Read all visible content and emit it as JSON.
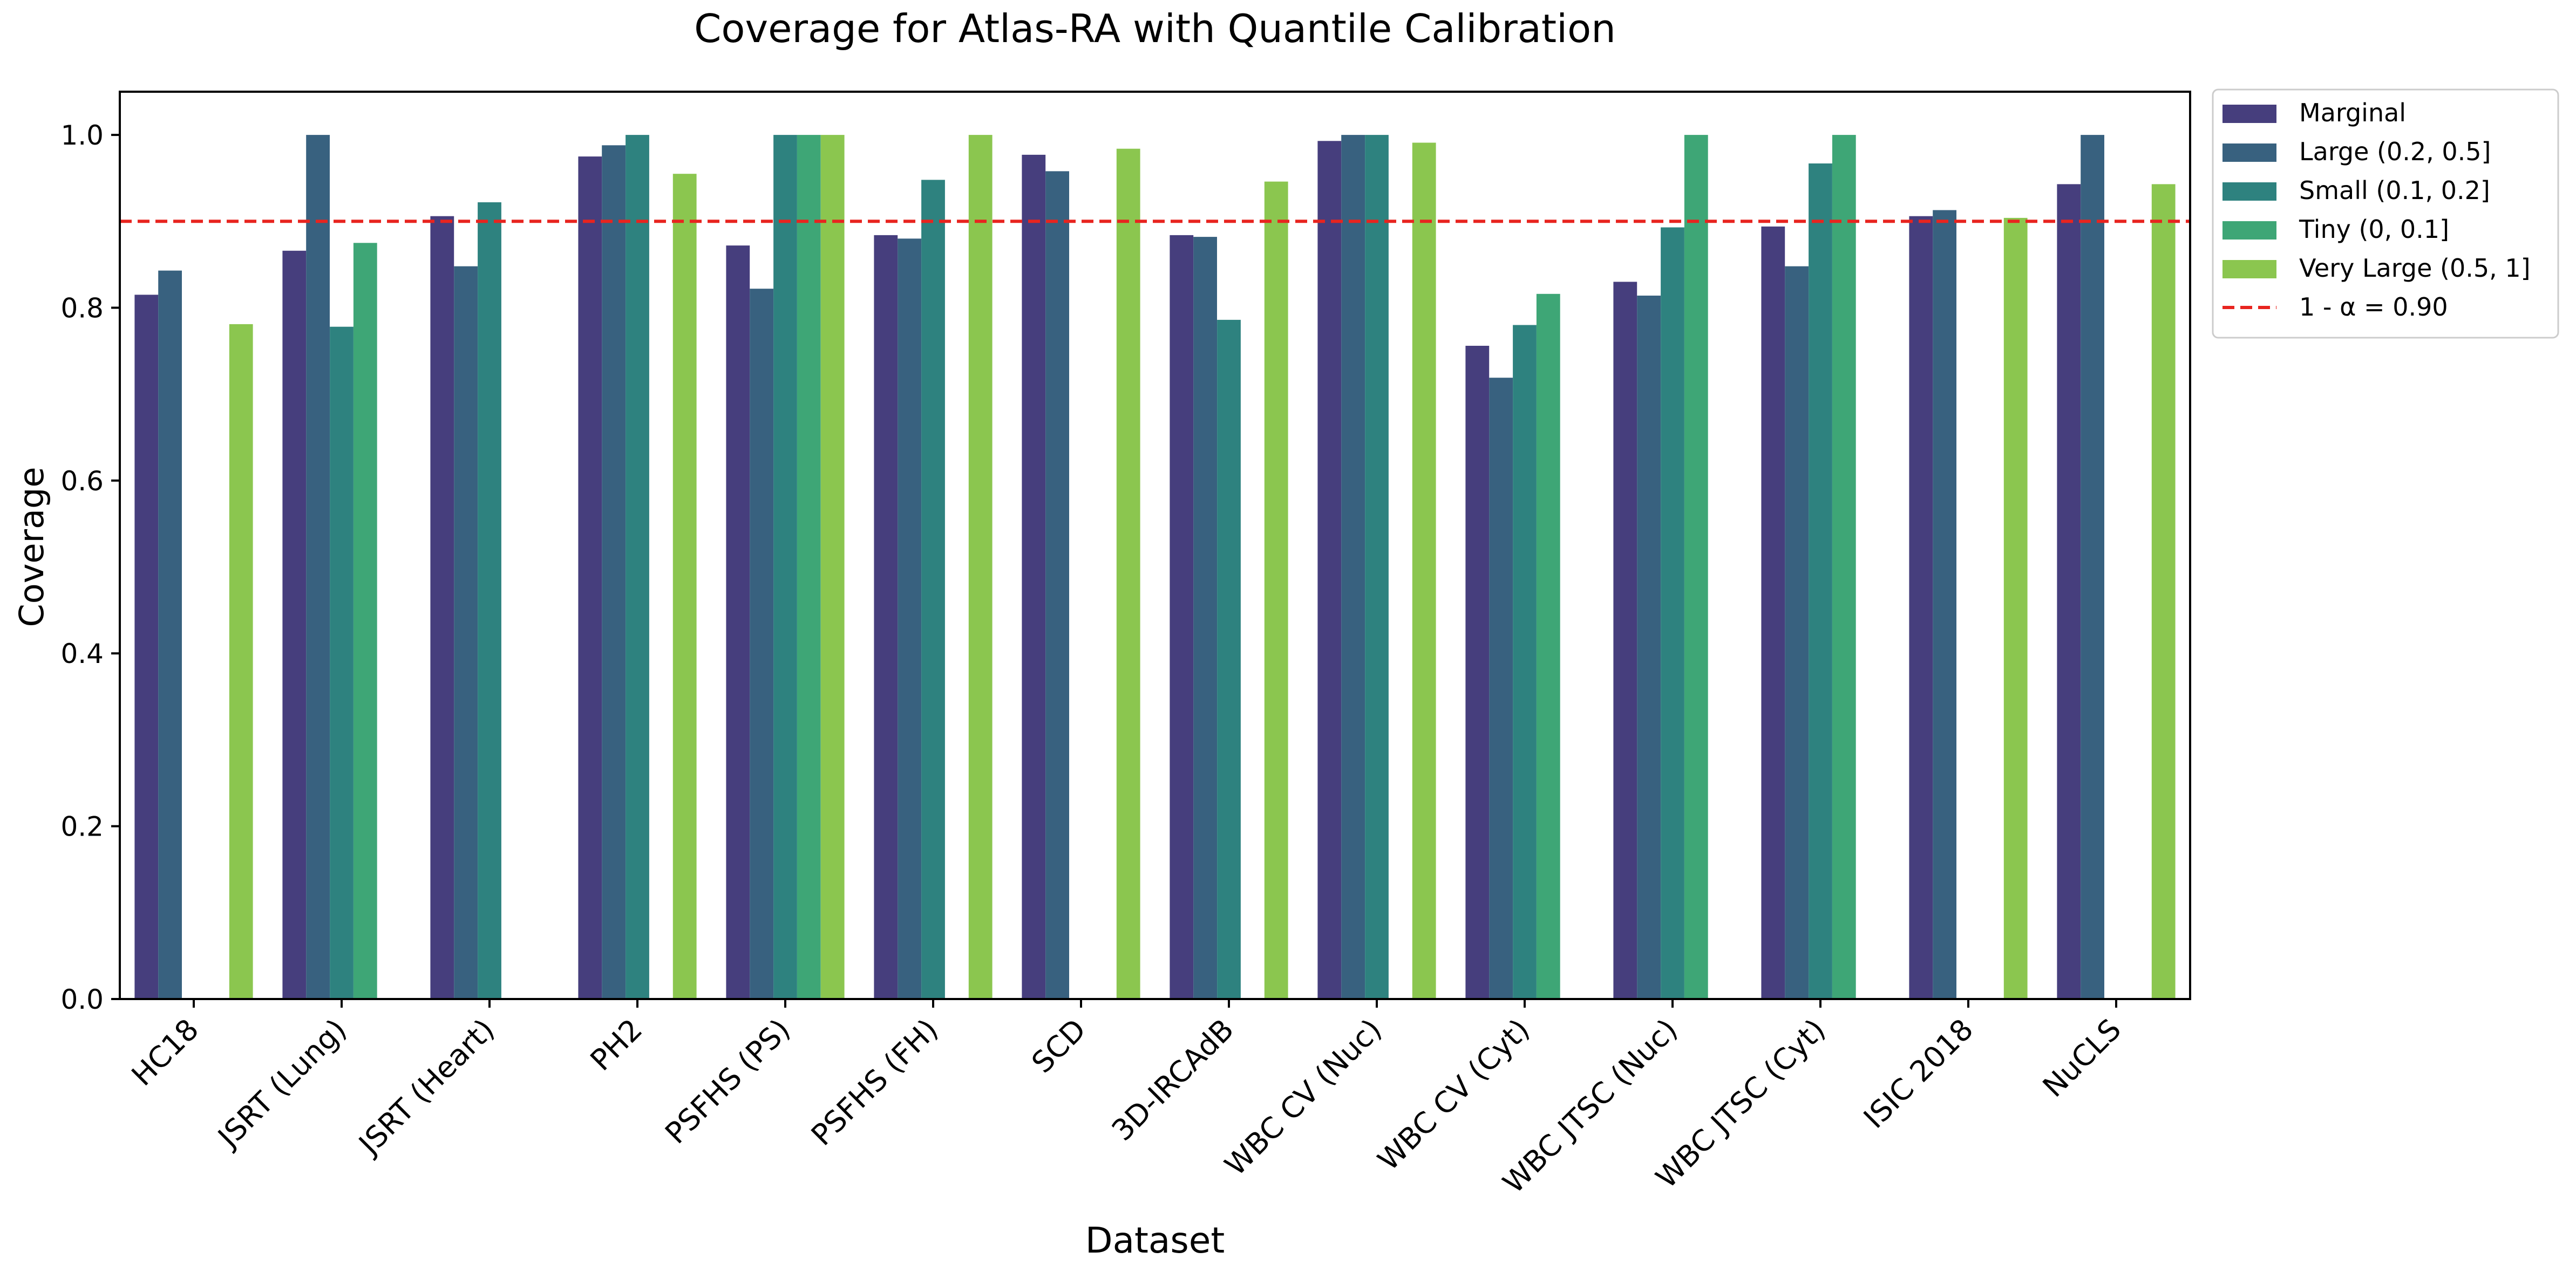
{
  "chart_data": {
    "type": "bar",
    "title": "Coverage for Atlas-RA with Quantile Calibration",
    "xlabel": "Dataset",
    "ylabel": "Coverage",
    "ylim": [
      0,
      1.05
    ],
    "yticks": [
      "0.0",
      "0.2",
      "0.4",
      "0.6",
      "0.8",
      "1.0"
    ],
    "grid": false,
    "legend_position": "outside top-right",
    "categories": [
      "HC18",
      "JSRT (Lung)",
      "JSRT (Heart)",
      "PH2",
      "PSFHS (PS)",
      "PSFHS (FH)",
      "SCD",
      "3D-IRCAdB",
      "WBC CV (Nuc)",
      "WBC CV (Cyt)",
      "WBC JTSC (Nuc)",
      "WBC JTSC (Cyt)",
      "ISIC 2018",
      "NuCLS"
    ],
    "series": [
      {
        "name": "Marginal",
        "color": "#463e7d",
        "values": [
          0.815,
          0.866,
          0.906,
          0.975,
          0.872,
          0.884,
          0.977,
          0.884,
          0.993,
          0.756,
          0.83,
          0.894,
          0.906,
          0.943
        ]
      },
      {
        "name": "Large (0.2, 0.5]",
        "color": "#38617f",
        "values": [
          0.843,
          1.0,
          0.848,
          0.988,
          0.822,
          0.88,
          0.958,
          0.882,
          1.0,
          0.719,
          0.814,
          0.848,
          0.913,
          1.0
        ]
      },
      {
        "name": "Small (0.1, 0.2]",
        "color": "#2e827f",
        "values": [
          null,
          0.778,
          0.922,
          1.0,
          1.0,
          0.948,
          null,
          0.786,
          1.0,
          0.78,
          0.893,
          0.967,
          null,
          null
        ]
      },
      {
        "name": "Tiny (0, 0.1]",
        "color": "#3ea676",
        "values": [
          null,
          0.875,
          null,
          null,
          1.0,
          null,
          null,
          null,
          null,
          0.816,
          1.0,
          1.0,
          null,
          null
        ]
      },
      {
        "name": "Very Large (0.5, 1]",
        "color": "#8bc64f",
        "values": [
          0.781,
          null,
          null,
          0.955,
          1.0,
          1.0,
          0.984,
          0.946,
          0.991,
          null,
          null,
          null,
          0.904,
          0.943
        ]
      }
    ],
    "reference_line": {
      "label": "1 - α = 0.90",
      "value": 0.9,
      "color": "#e8241f",
      "style": "dashed"
    }
  }
}
